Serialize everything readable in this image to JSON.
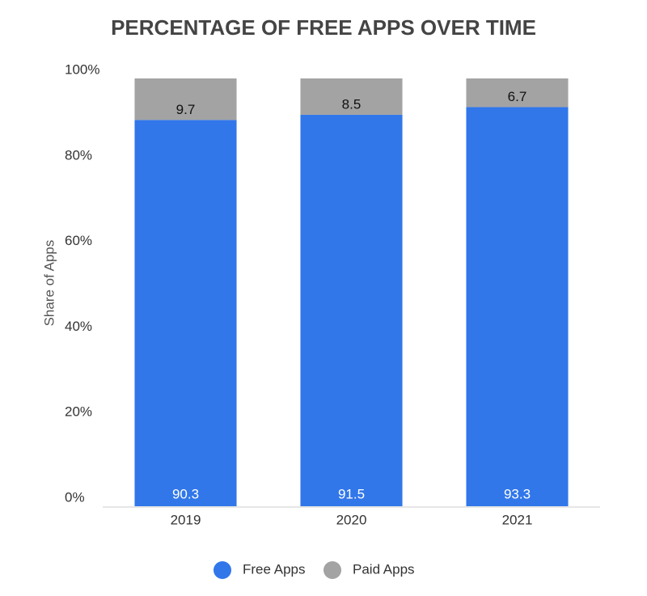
{
  "chart_data": {
    "type": "bar",
    "stacked": true,
    "title": "PERCENTAGE OF FREE APPS OVER TIME",
    "y_label": "Share of Apps",
    "categories": [
      "2019",
      "2020",
      "2021"
    ],
    "series": [
      {
        "name": "Free Apps",
        "color": "#3177ea",
        "values": [
          90.3,
          91.5,
          93.3
        ]
      },
      {
        "name": "Paid Apps",
        "color": "#a3a3a3",
        "values": [
          9.7,
          8.5,
          6.7
        ]
      }
    ],
    "ylim": [
      0,
      100
    ],
    "yticks": [
      {
        "value": 0,
        "label": "0%"
      },
      {
        "value": 20,
        "label": "20%"
      },
      {
        "value": 40,
        "label": "40%"
      },
      {
        "value": 60,
        "label": "60%"
      },
      {
        "value": 80,
        "label": "80%"
      },
      {
        "value": 100,
        "label": "100%"
      }
    ],
    "grid": false,
    "legend": "bottom"
  }
}
